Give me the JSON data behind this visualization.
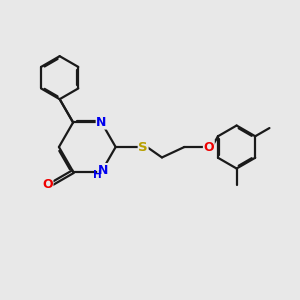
{
  "background_color": "#e8e8e8",
  "bond_color": "#1a1a1a",
  "N_color": "#0000ee",
  "O_color": "#ee0000",
  "S_color": "#b8a000",
  "line_width": 1.6,
  "dbo": 0.042,
  "figsize": [
    3.0,
    3.0
  ],
  "dpi": 100,
  "xlim": [
    0.0,
    10.0
  ],
  "ylim": [
    0.0,
    10.0
  ]
}
